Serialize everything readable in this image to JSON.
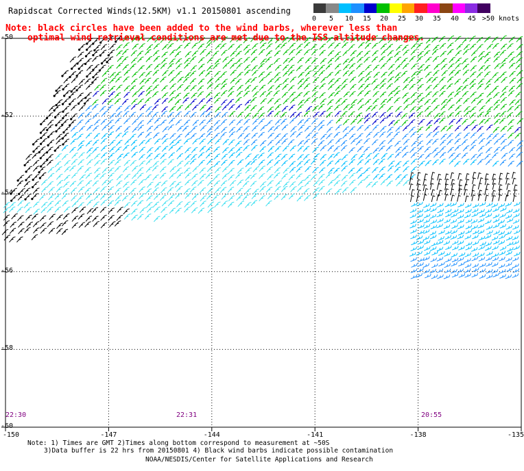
{
  "header": {
    "title": "Rapidscat Corrected Winds(12.5KM) v1.1 20150801 ascending"
  },
  "note": {
    "line1": "Note: black circles have been added to the wind barbs, wherever less than",
    "line2": "optimal wind retrieval conditions are met due to the ISS altitude changes."
  },
  "legend": {
    "colors": [
      "#3a3a3a",
      "#888888",
      "#00bfff",
      "#1e90ff",
      "#0000cd",
      "#00c000",
      "#ffff00",
      "#ffa500",
      "#ff2020",
      "#ff00cc",
      "#8b4513",
      "#ff00ff",
      "#8a2be2",
      "#400060"
    ],
    "labels": [
      "0",
      "5",
      "10",
      "15",
      "20",
      "25",
      "30",
      "35",
      "40",
      "45",
      ">50 knots"
    ]
  },
  "axes": {
    "lat_labels": [
      "-50",
      "-52",
      "-54",
      "-56",
      "-58",
      "-60"
    ],
    "lon_labels": [
      "-150",
      "-147",
      "-144",
      "-141",
      "-138",
      "-135"
    ],
    "lat_values": [
      -50,
      -52,
      -54,
      -56,
      -58,
      -60
    ],
    "lon_values": [
      -150,
      -147,
      -144,
      -141,
      -138,
      -135
    ]
  },
  "swaths": [
    {
      "time": "22:30"
    },
    {
      "time": "22:31"
    },
    {
      "time": "20:55"
    }
  ],
  "footer": {
    "line1": "Note: 1) Times are GMT 2)Times along bottom correspond to measurement at ~50S",
    "line2": "3)Data buffer is 22 hrs from 20150801 4) Black wind barbs indicate possible contamination",
    "line3": "NOAA/NESDIS/Center for Satellite Applications and Research"
  }
}
